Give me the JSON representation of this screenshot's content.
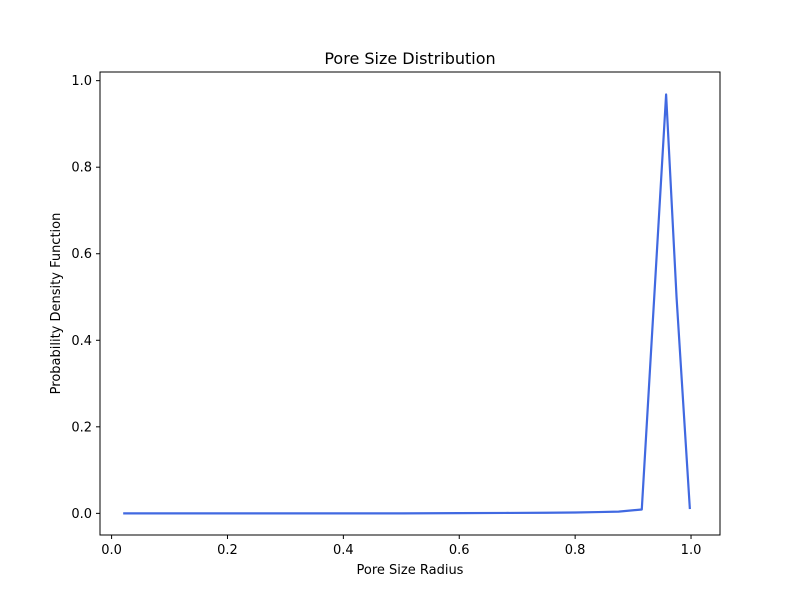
{
  "chart_data": {
    "type": "line",
    "title": "Pore Size Distribution",
    "xlabel": "Pore Size Radius",
    "ylabel": "Probability Density Function",
    "xlim": [
      -0.02,
      1.05
    ],
    "ylim": [
      -0.05,
      1.02
    ],
    "xticks": [
      0.0,
      0.2,
      0.4,
      0.6,
      0.8,
      1.0
    ],
    "xtick_labels": [
      "0.0",
      "0.2",
      "0.4",
      "0.6",
      "0.8",
      "1.0"
    ],
    "yticks": [
      0.0,
      0.2,
      0.4,
      0.6,
      0.8,
      1.0
    ],
    "ytick_labels": [
      "0.0",
      "0.2",
      "0.4",
      "0.6",
      "0.8",
      "1.0"
    ],
    "grid": false,
    "series": [
      {
        "color": "#4169e1",
        "x": [
          0.02,
          0.1,
          0.2,
          0.3,
          0.4,
          0.5,
          0.6,
          0.68,
          0.75,
          0.8,
          0.84,
          0.875,
          0.915,
          0.957,
          0.975,
          0.998
        ],
        "y": [
          0.0,
          0.0,
          0.0,
          0.0,
          0.0,
          0.0,
          0.0005,
          0.001,
          0.0015,
          0.002,
          0.003,
          0.004,
          0.009,
          0.968,
          0.5,
          0.01
        ]
      }
    ]
  }
}
